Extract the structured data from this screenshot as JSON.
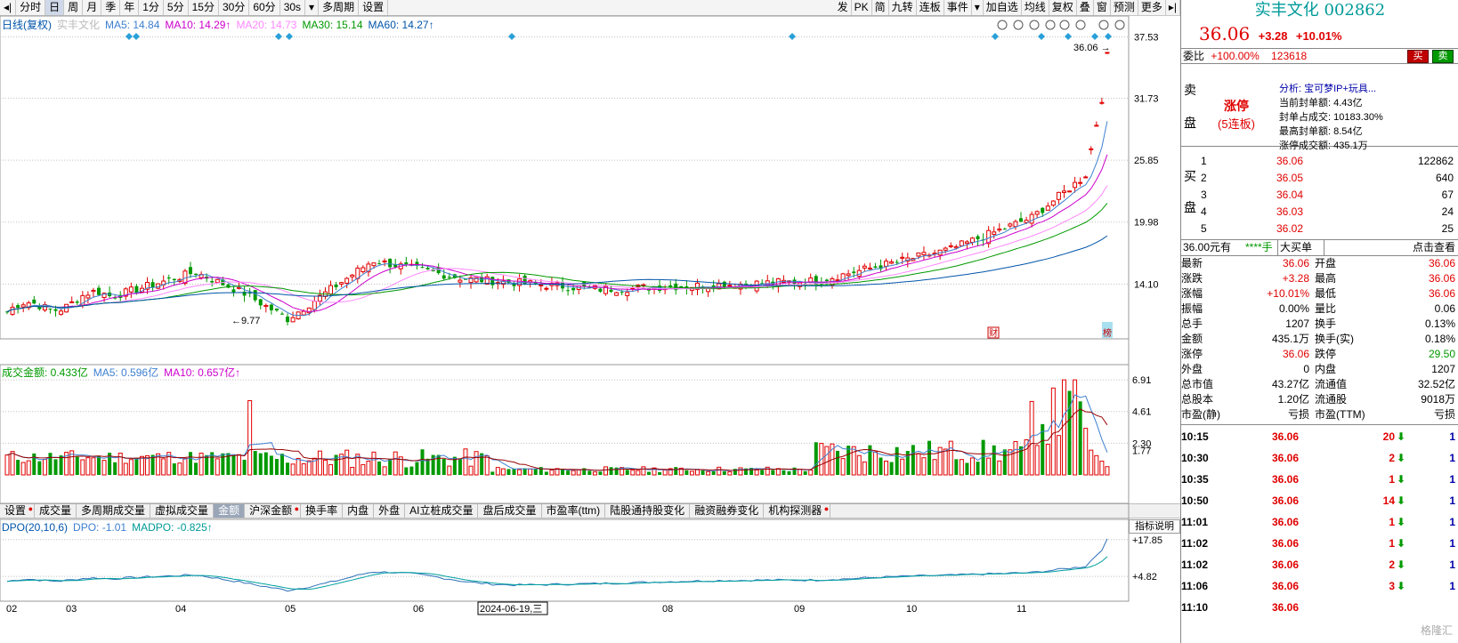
{
  "toolbar": {
    "left_items": [
      "◂|",
      "分时",
      "日",
      "周",
      "月",
      "季",
      "年",
      "1分",
      "5分",
      "15分",
      "30分",
      "60分",
      "30s",
      "▾",
      "多周期",
      "设置"
    ],
    "active_index": 2,
    "right_items": [
      "发",
      "PK",
      "简",
      "九转",
      "连板",
      "事件",
      "▾",
      "加自选",
      "均线",
      "复权",
      "叠",
      "窗",
      "预测",
      "更多",
      "▸|"
    ]
  },
  "price_legend": {
    "label": "日线(复权)",
    "stock": "实丰文化",
    "ma": [
      {
        "text": "MA5: 14.84",
        "color": "#3c7fd0"
      },
      {
        "text": "MA10: 14.29↑",
        "color": "#cc00cc"
      },
      {
        "text": "MA20: 14.73",
        "color": "#ff88ff"
      },
      {
        "text": "MA30: 15.14",
        "color": "#009900"
      },
      {
        "text": "MA60: 14.27↑",
        "color": "#0055aa"
      }
    ]
  },
  "price_axis": [
    "37.53",
    "31.73",
    "25.85",
    "19.98",
    "14.10"
  ],
  "last_price_tag": "36.06",
  "low_tag": "9.77",
  "event_markers": [
    "财",
    "榜"
  ],
  "vol_legend": {
    "label": "成交金额: 0.433亿",
    "ma5": "MA5: 0.596亿",
    "ma10": "MA10: 0.657亿↑"
  },
  "vol_axis": [
    "6.91",
    "4.61",
    "2.30",
    "1.77"
  ],
  "ind_tabs": [
    {
      "label": "设置",
      "dot": true
    },
    {
      "label": "成交量",
      "dot": false
    },
    {
      "label": "多周期成交量",
      "dot": false
    },
    {
      "label": "虚拟成交量",
      "dot": false
    },
    {
      "label": "金额",
      "dot": false
    },
    {
      "label": "沪深金额",
      "dot": true
    },
    {
      "label": "换手率",
      "dot": false
    },
    {
      "label": "内盘",
      "dot": false
    },
    {
      "label": "外盘",
      "dot": false
    },
    {
      "label": "AI立桩成交量",
      "dot": false
    },
    {
      "label": "盘后成交量",
      "dot": false
    },
    {
      "label": "市盈率(ttm)",
      "dot": false
    },
    {
      "label": "陆股通持股变化",
      "dot": false
    },
    {
      "label": "融资融券变化",
      "dot": false
    },
    {
      "label": "机构探测器",
      "dot": true
    }
  ],
  "ind_active_index": 4,
  "ind_help": "指标说明",
  "dpo_legend": {
    "label": "DPO(20,10,6)",
    "dpo": "DPO: -1.01",
    "madpo": "MADPO: -0.825↑"
  },
  "dpo_axis": [
    "+17.85",
    "+4.82"
  ],
  "x_axis": [
    "02",
    "03",
    "04",
    "05",
    "06",
    "2024-06-19,三",
    "08",
    "09",
    "10",
    "11"
  ],
  "right": {
    "title": "实丰文化 002862",
    "price": "36.06",
    "change": "+3.28",
    "pct": "+10.01%",
    "weibi_label": "委比",
    "weibi_value": "+100.00%",
    "weicha": "123618",
    "buy_label": "买",
    "sell_label": "卖",
    "sell_side": "卖盘",
    "buy_side": "买盘",
    "limit_status": "涨停",
    "limit_days": "(5连板)",
    "analysis": [
      "分析: 宝可梦IP+玩具...",
      "当前封单额: 4.43亿",
      "封单占成交: 10183.30%",
      "最高封单额: 8.54亿",
      "涨停成交额: 435.1万"
    ],
    "bids": [
      {
        "lv": "1",
        "price": "36.06",
        "vol": "122862"
      },
      {
        "lv": "2",
        "price": "36.05",
        "vol": "640"
      },
      {
        "lv": "3",
        "price": "36.04",
        "vol": "67"
      },
      {
        "lv": "4",
        "price": "36.03",
        "vol": "24"
      },
      {
        "lv": "5",
        "price": "36.02",
        "vol": "25"
      }
    ],
    "trade_bar": {
      "a": "36.00元有",
      "b": "****手",
      "c": "大买单",
      "d": "点击查看"
    },
    "stats": [
      [
        "最新",
        "36.06",
        "开盘",
        "36.06"
      ],
      [
        "涨跌",
        "+3.28",
        "最高",
        "36.06"
      ],
      [
        "涨幅",
        "+10.01%",
        "最低",
        "36.06"
      ],
      [
        "振幅",
        "0.00%",
        "量比",
        "0.06"
      ],
      [
        "总手",
        "1207",
        "换手",
        "0.13%"
      ],
      [
        "金额",
        "435.1万",
        "换手(实)",
        "0.18%"
      ],
      [
        "涨停",
        "36.06",
        "跌停",
        "29.50"
      ],
      [
        "外盘",
        "0",
        "内盘",
        "1207"
      ],
      [
        "总市值",
        "43.27亿",
        "流通值",
        "32.52亿"
      ],
      [
        "总股本",
        "1.20亿",
        "流通股",
        "9018万"
      ],
      [
        "市盈(静)",
        "亏损",
        "市盈(TTM)",
        "亏损"
      ]
    ],
    "ticks": [
      {
        "t": "10:15",
        "p": "36.06",
        "v": "20",
        "n": "1"
      },
      {
        "t": "10:30",
        "p": "36.06",
        "v": "2",
        "n": "1"
      },
      {
        "t": "10:35",
        "p": "36.06",
        "v": "1",
        "n": "1"
      },
      {
        "t": "10:50",
        "p": "36.06",
        "v": "14",
        "n": "1"
      },
      {
        "t": "11:01",
        "p": "36.06",
        "v": "1",
        "n": "1"
      },
      {
        "t": "11:02",
        "p": "36.06",
        "v": "1",
        "n": "1"
      },
      {
        "t": "11:02",
        "p": "36.06",
        "v": "2",
        "n": "1"
      },
      {
        "t": "11:06",
        "p": "36.06",
        "v": "3",
        "n": "1"
      },
      {
        "t": "11:10",
        "p": "36.06",
        "v": "",
        "n": ""
      }
    ],
    "watermark": "格隆汇"
  },
  "chart_data": {
    "type": "candlestick",
    "close_start": 11.8,
    "close_end": 36.06,
    "low_marker": 9.77,
    "y_ticks": [
      14.1,
      19.98,
      25.85,
      31.73,
      37.53
    ]
  }
}
